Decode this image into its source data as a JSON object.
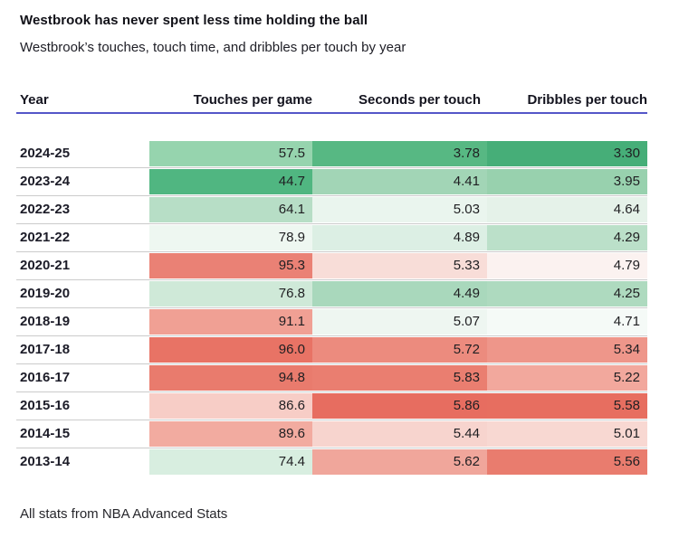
{
  "title": "Westbrook has never spent less time holding the ball",
  "subtitle": "Westbrook’s touches, touch time, and dribbles per touch by year",
  "footer": "All stats from NBA Advanced Stats",
  "accent": {
    "header_underline_color": "#5456c8",
    "row_separator_color": "#cbcbcb"
  },
  "table": {
    "columns": [
      "Year",
      "Touches per game",
      "Seconds per touch",
      "Dribbles per touch"
    ],
    "rows": [
      {
        "year": "2024-25",
        "touches": "57.5",
        "seconds": "3.78",
        "dribbles": "3.30",
        "colors": [
          "#96d4ae",
          "#57b883",
          "#46ae78"
        ]
      },
      {
        "year": "2023-24",
        "touches": "44.7",
        "seconds": "4.41",
        "dribbles": "3.95",
        "colors": [
          "#50b681",
          "#a2d5b6",
          "#98d1ae"
        ]
      },
      {
        "year": "2022-23",
        "touches": "64.1",
        "seconds": "5.03",
        "dribbles": "4.64",
        "colors": [
          "#b7dec6",
          "#eaf5ee",
          "#e5f2e9"
        ]
      },
      {
        "year": "2021-22",
        "touches": "78.9",
        "seconds": "4.89",
        "dribbles": "4.29",
        "colors": [
          "#eef7f1",
          "#dcefe4",
          "#bbe0c9"
        ]
      },
      {
        "year": "2020-21",
        "touches": "95.3",
        "seconds": "5.33",
        "dribbles": "4.79",
        "colors": [
          "#ea8175",
          "#f8ddd8",
          "#fbf2f0"
        ]
      },
      {
        "year": "2019-20",
        "touches": "76.8",
        "seconds": "4.49",
        "dribbles": "4.25",
        "colors": [
          "#cfe9d8",
          "#a9d8bc",
          "#aedabf"
        ]
      },
      {
        "year": "2018-19",
        "touches": "91.1",
        "seconds": "5.07",
        "dribbles": "4.71",
        "colors": [
          "#f0a094",
          "#eef6f1",
          "#f5faf7"
        ]
      },
      {
        "year": "2017-18",
        "touches": "96.0",
        "seconds": "5.72",
        "dribbles": "5.34",
        "colors": [
          "#e87365",
          "#ec8b7e",
          "#ee968a"
        ]
      },
      {
        "year": "2016-17",
        "touches": "94.8",
        "seconds": "5.83",
        "dribbles": "5.22",
        "colors": [
          "#e97b6d",
          "#ea7e70",
          "#f2a89d"
        ]
      },
      {
        "year": "2015-16",
        "touches": "86.6",
        "seconds": "5.86",
        "dribbles": "5.58",
        "colors": [
          "#f7cdc6",
          "#e76d60",
          "#e76e60"
        ]
      },
      {
        "year": "2014-15",
        "touches": "89.6",
        "seconds": "5.44",
        "dribbles": "5.01",
        "colors": [
          "#f2aba0",
          "#f7d4ce",
          "#f8d8d2"
        ]
      },
      {
        "year": "2013-14",
        "touches": "74.4",
        "seconds": "5.62",
        "dribbles": "5.56",
        "colors": [
          "#d8eee0",
          "#f0a69b",
          "#e97c6e"
        ]
      }
    ]
  },
  "chart_data": {
    "type": "heatmap",
    "title": "Westbrook has never spent less time holding the ball",
    "subtitle": "Westbrook’s touches, touch time, and dribbles per touch by year",
    "categories": [
      "2024-25",
      "2023-24",
      "2022-23",
      "2021-22",
      "2020-21",
      "2019-20",
      "2018-19",
      "2017-18",
      "2016-17",
      "2015-16",
      "2014-15",
      "2013-14"
    ],
    "series": [
      {
        "name": "Touches per game",
        "values": [
          57.5,
          44.7,
          64.1,
          78.9,
          95.3,
          76.8,
          91.1,
          96.0,
          94.8,
          86.6,
          89.6,
          74.4
        ]
      },
      {
        "name": "Seconds per touch",
        "values": [
          3.78,
          4.41,
          5.03,
          4.89,
          5.33,
          4.49,
          5.07,
          5.72,
          5.83,
          5.86,
          5.44,
          5.62
        ]
      },
      {
        "name": "Dribbles per touch",
        "values": [
          3.3,
          3.95,
          4.64,
          4.29,
          4.79,
          4.25,
          4.71,
          5.34,
          5.22,
          5.58,
          5.01,
          5.56
        ]
      }
    ],
    "color_scale": {
      "low": "#46ae78",
      "mid": "#ffffff",
      "high": "#e76d60",
      "note": "green = lower value (less time), red = higher value; scaled per column"
    },
    "legend_position": "none",
    "grid": "row separators only",
    "source_note": "All stats from NBA Advanced Stats"
  }
}
